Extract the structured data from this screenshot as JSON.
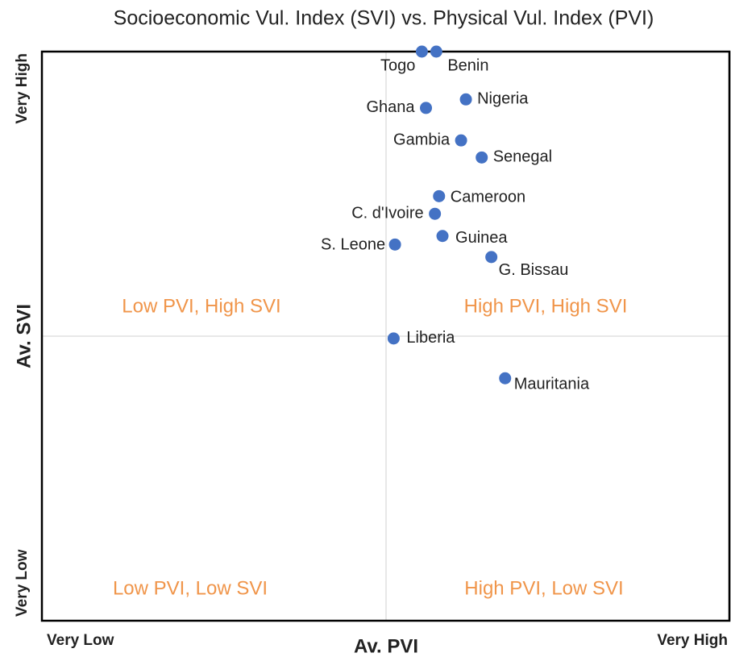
{
  "chart_data": {
    "type": "scatter",
    "title": "Socioeconomic Vul. Index (SVI) vs. Physical Vul. Index (PVI)",
    "labels": [
      "Togo",
      "Benin",
      "Nigeria",
      "Ghana",
      "Gambia",
      "Senegal",
      "Cameroon",
      "C. d'Ivoire",
      "Guinea",
      "S. Leone",
      "G. Bissau",
      "Liberia",
      "Mauritania"
    ],
    "x": [
      0.552,
      0.573,
      0.616,
      0.558,
      0.609,
      0.639,
      0.577,
      0.571,
      0.582,
      0.513,
      0.653,
      0.511,
      0.673
    ],
    "y": [
      1.0,
      1.0,
      0.916,
      0.901,
      0.844,
      0.814,
      0.746,
      0.715,
      0.676,
      0.661,
      0.639,
      0.496,
      0.426
    ],
    "color": "#4472c4",
    "xlim": [
      0,
      1
    ],
    "ylim": [
      0,
      1
    ],
    "xticks": [
      {
        "value": 0,
        "label": "Very Low"
      },
      {
        "value": 0.5,
        "label": "Av. PVI"
      },
      {
        "value": 1,
        "label": "Very High"
      }
    ],
    "yticks": [
      {
        "value": 0,
        "label": "Very Low"
      },
      {
        "value": 0.5,
        "label": "Av. SVI"
      },
      {
        "value": 1,
        "label": "Very High"
      }
    ],
    "annotations": [
      "Low PVI, High SVI",
      "High PVI, High SVI",
      "Low PVI, Low SVI",
      "High PVI, Low SVI"
    ],
    "grid": true
  }
}
